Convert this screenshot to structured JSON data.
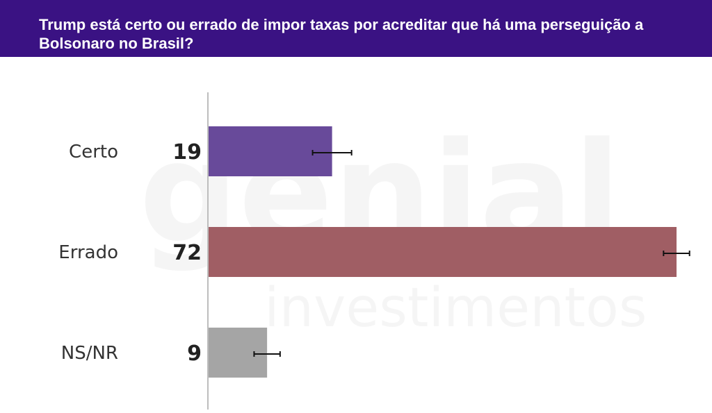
{
  "chart_data": {
    "type": "bar",
    "orientation": "horizontal",
    "title": "Trump está certo ou errado de impor taxas por acreditar que há uma perseguição a Bolsonaro no Brasil?",
    "categories": [
      "Certo",
      "Errado",
      "NS/NR"
    ],
    "values": [
      19,
      72,
      9
    ],
    "error_margin": [
      3,
      2,
      2
    ],
    "xlim": [
      0,
      72
    ],
    "colors": [
      "#684a9a",
      "#a05e64",
      "#a5a5a5"
    ],
    "grid": false,
    "legend": "none"
  },
  "watermark": {
    "brand": "genial",
    "subtitle": "investimentos"
  },
  "colors": {
    "header_bg": "#3a1283",
    "axis": "#bdbdbd"
  }
}
